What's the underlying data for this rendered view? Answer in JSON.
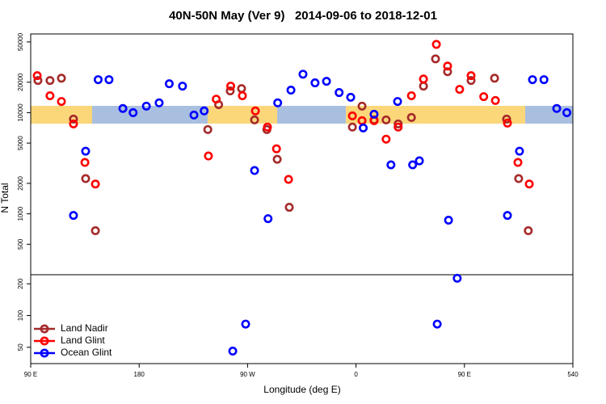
{
  "chart_data": [
    {
      "type": "scatter",
      "title": "40N-50N May (Ver 9)   2014-09-06 to 2018-12-01",
      "ylabel": "N Total",
      "log_scale": true,
      "legend": "bottom-left",
      "xlim": [
        90,
        540
      ],
      "ylim": [
        250,
        60000
      ],
      "yticks": [
        500,
        1000,
        2000,
        5000,
        10000,
        20000,
        50000
      ],
      "series": [
        {
          "name": "Land Nadir",
          "color": "#a52a2a",
          "x": [
            96,
            106,
            115.5,
            125.5,
            135.6,
            143.7,
            237,
            246,
            255.6,
            265,
            275.8,
            286,
            294.6,
            304.6,
            357,
            365,
            375,
            385,
            395,
            406,
            416,
            426,
            436,
            455.5,
            475,
            485,
            495,
            503
          ],
          "values": [
            20800,
            20800,
            21900,
            8640,
            2230,
            681,
            6810,
            12000,
            16400,
            17300,
            8480,
            6810,
            3460,
            1160,
            7200,
            11600,
            8480,
            8480,
            7740,
            8960,
            18300,
            34000,
            25400,
            20800,
            21900,
            8640,
            2230,
            681
          ]
        },
        {
          "name": "Land Glint",
          "color": "#ff0000",
          "x": [
            95.4,
            106,
            115.5,
            125.5,
            135,
            143.7,
            237.5,
            244,
            256,
            265.7,
            276.5,
            286.5,
            294,
            304,
            357,
            365,
            375,
            385,
            395,
            406,
            416,
            426.7,
            436,
            446,
            455.5,
            466,
            475.7,
            485.7,
            494.4,
            503.8
          ],
          "values": [
            23200,
            14700,
            12900,
            7740,
            3220,
            1970,
            3730,
            13600,
            18300,
            14700,
            10400,
            7200,
            4390,
            2190,
            9300,
            8330,
            8330,
            5470,
            7200,
            14700,
            21500,
            47300,
            28900,
            17000,
            23200,
            14400,
            13200,
            7890,
            3220,
            1970
          ]
        },
        {
          "name": "Ocean Glint",
          "color": "#0000ff",
          "x": [
            125.5,
            135.6,
            146,
            155,
            166.5,
            175,
            186,
            196.6,
            205,
            216,
            225.5,
            234,
            275.8,
            287,
            295,
            306,
            316,
            326,
            335.5,
            346,
            355.6,
            366,
            375,
            389,
            394.5,
            407,
            412.6,
            436.8,
            485.7,
            495.7,
            506.5,
            516,
            526.6,
            535
          ],
          "values": [
            964,
            4160,
            21200,
            21200,
            11000,
            10000,
            11600,
            12500,
            19300,
            18300,
            9470,
            10400,
            2680,
            896,
            12500,
            16700,
            24000,
            19700,
            20400,
            15800,
            14200,
            7060,
            9640,
            3050,
            12900,
            3050,
            3340,
            865,
            964,
            4160,
            21200,
            21200,
            11000,
            10000
          ]
        }
      ]
    },
    {
      "type": "scatter",
      "xlabel": "Longitude (deg E)",
      "log_scale": true,
      "xlim": [
        90,
        540
      ],
      "xticks": [
        {
          "value": 90,
          "label": "90 E"
        },
        180,
        {
          "value": 270,
          "label": "90 W"
        },
        {
          "value": 360,
          "label": "0"
        },
        {
          "value": 450,
          "label": "90 E"
        },
        540
      ],
      "ylim": [
        35,
        244
      ],
      "yticks": [
        50,
        100,
        200
      ],
      "series": [
        {
          "color": "#0000ff",
          "x": [
            257.7,
            268.4,
            427.4,
            444
          ],
          "values": [
            46,
            83,
            83,
            226
          ]
        }
      ]
    }
  ]
}
